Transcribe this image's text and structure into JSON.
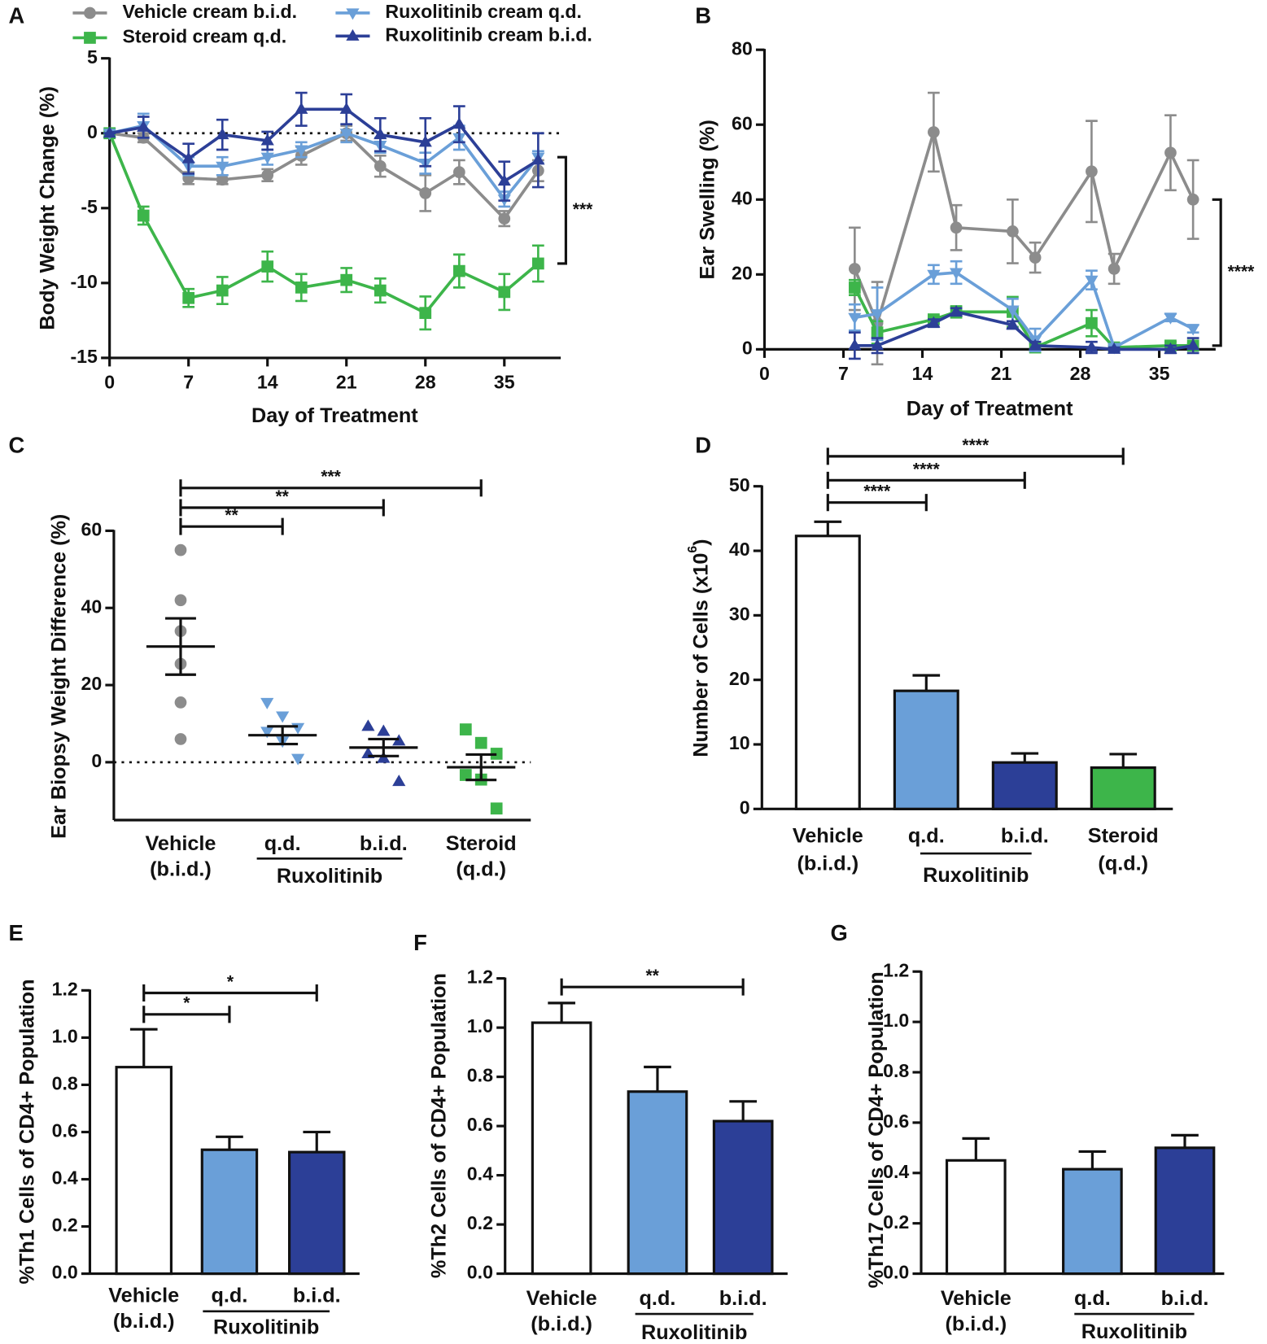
{
  "chart_data": [
    {
      "type": "line",
      "panel": "A",
      "xlabel": "Day of Treatment",
      "ylabel": "Body Weight Change (%)",
      "x": [
        0,
        3,
        7,
        10,
        14,
        17,
        21,
        24,
        28,
        31,
        35,
        38
      ],
      "xlim": [
        0,
        40
      ],
      "xticks": [
        0,
        7,
        14,
        21,
        28,
        35
      ],
      "ylim": [
        -15,
        5
      ],
      "yticks": [
        -15,
        -10,
        -5,
        0,
        5
      ],
      "zero_line": true,
      "legend": true,
      "annotation": "***",
      "series": [
        {
          "name": "Vehicle cream b.i.d.",
          "color": "#8c8c8c",
          "marker": "circle",
          "values": [
            0,
            -0.3,
            -3.0,
            -3.1,
            -2.8,
            -1.5,
            0,
            -2.2,
            -4.0,
            -2.6,
            -5.7,
            -2.5
          ],
          "errors": [
            0,
            0.3,
            0.4,
            0.3,
            0.4,
            0.6,
            0.5,
            0.7,
            1.2,
            0.8,
            0.5,
            0.7
          ]
        },
        {
          "name": "Steroid cream q.d.",
          "color": "#3db54a",
          "marker": "square",
          "values": [
            0,
            -5.5,
            -11,
            -10.5,
            -8.9,
            -10.3,
            -9.8,
            -10.5,
            -12,
            -9.2,
            -10.6,
            -8.7
          ],
          "errors": [
            0,
            0.6,
            0.6,
            0.9,
            1.0,
            0.9,
            0.8,
            0.8,
            1.1,
            1.1,
            1.2,
            1.2
          ]
        },
        {
          "name": "Ruxolitinib cream q.d.",
          "color": "#6a9fd8",
          "marker": "tri-down",
          "values": [
            0,
            0.5,
            -2.2,
            -2.2,
            -1.6,
            -1.1,
            0,
            -0.8,
            -2.0,
            -0.3,
            -4.4,
            -1.6
          ],
          "errors": [
            0,
            0.8,
            0.6,
            0.6,
            0.5,
            0.5,
            0.6,
            0.5,
            0.7,
            0.8,
            0.5,
            0.4
          ]
        },
        {
          "name": "Ruxolitinib cream b.i.d.",
          "color": "#2c3f97",
          "marker": "tri-up",
          "values": [
            0,
            0.4,
            -1.7,
            -0.1,
            -0.5,
            1.6,
            1.6,
            -0.1,
            -0.6,
            0.6,
            -3.2,
            -1.8
          ],
          "errors": [
            0,
            0.7,
            1.0,
            1.0,
            0.6,
            1.1,
            1.0,
            1.1,
            1.6,
            1.2,
            1.3,
            1.8
          ]
        }
      ]
    },
    {
      "type": "line",
      "panel": "B",
      "xlabel": "Day of Treatment",
      "ylabel": "Ear Swelling (%)",
      "x": [
        8,
        10,
        15,
        17,
        22,
        24,
        29,
        31,
        36,
        38
      ],
      "xlim": [
        0,
        40
      ],
      "xticks": [
        0,
        7,
        14,
        21,
        28,
        35
      ],
      "ylim": [
        0,
        80
      ],
      "yticks": [
        0,
        20,
        40,
        60,
        80
      ],
      "annotation": "****",
      "series": [
        {
          "color": "#8c8c8c",
          "marker": "circle",
          "values": [
            21.5,
            7,
            58,
            32.5,
            31.5,
            24.5,
            47.5,
            21.5,
            52.5,
            40
          ],
          "errors": [
            11,
            11,
            10.5,
            6,
            8.5,
            4,
            13.5,
            4,
            10,
            10.5
          ]
        },
        {
          "color": "#3db54a",
          "marker": "square",
          "values": [
            16.5,
            4.5,
            8,
            10,
            10,
            0.5,
            7,
            0.5,
            1,
            1
          ],
          "errors": [
            2,
            3,
            1,
            1.5,
            4,
            1,
            3.5,
            0.5,
            1,
            0.5
          ]
        },
        {
          "color": "#6a9fd8",
          "marker": "tri-down",
          "values": [
            8.5,
            9.5,
            20,
            20.5,
            10.5,
            2.5,
            18.5,
            0.5,
            8.5,
            5.5
          ],
          "errors": [
            3.5,
            7,
            2.5,
            3,
            3,
            3,
            2.5,
            0.5,
            1,
            1
          ]
        },
        {
          "color": "#2c3f97",
          "marker": "tri-up",
          "values": [
            1,
            1,
            7,
            10,
            6.5,
            1,
            0.5,
            0,
            0,
            1
          ],
          "errors": [
            3.5,
            2,
            1,
            1,
            1,
            1,
            1.5,
            0.5,
            1,
            2
          ]
        }
      ]
    },
    {
      "type": "dot",
      "panel": "C",
      "ylabel": "Ear Biopsy Weight Difference (%)",
      "categories": [
        [
          "Vehicle",
          "(b.i.d.)"
        ],
        [
          "q.d."
        ],
        [
          "b.i.d."
        ],
        [
          "Steroid",
          "(q.d.)"
        ]
      ],
      "group_label": "Ruxolitinib",
      "ylim": [
        -15,
        60
      ],
      "yticks": [
        0,
        20,
        40,
        60
      ],
      "zero_line": true,
      "groups": [
        {
          "color": "#8c8c8c",
          "marker": "circle",
          "points": [
            55,
            42,
            34,
            25.5,
            15.5,
            6
          ],
          "mean": 30,
          "sem": 7.3
        },
        {
          "color": "#6a9fd8",
          "marker": "tri-down",
          "points": [
            15.5,
            12,
            9,
            8,
            5.5,
            1
          ],
          "mean": 7,
          "sem": 2.3
        },
        {
          "color": "#2c3f97",
          "marker": "tri-up",
          "points": [
            9.3,
            8,
            5.5,
            2.2,
            1,
            -5
          ],
          "mean": 3.8,
          "sem": 2.2
        },
        {
          "color": "#3db54a",
          "marker": "square",
          "points": [
            8.5,
            5,
            2.2,
            -3.3,
            -4.5,
            -12
          ],
          "mean": -1.3,
          "sem": 3.3
        }
      ],
      "comparisons": [
        {
          "from": 0,
          "to": 1,
          "label": "**"
        },
        {
          "from": 0,
          "to": 2,
          "label": "**"
        },
        {
          "from": 0,
          "to": 3,
          "label": "***"
        }
      ]
    },
    {
      "type": "bar",
      "panel": "D",
      "ylabel": {
        "text": "Number of Cells (x10",
        "sup": "6",
        "end": ")"
      },
      "categories": [
        [
          "Vehicle",
          "(b.i.d.)"
        ],
        [
          "q.d."
        ],
        [
          "b.i.d."
        ],
        [
          "Steroid",
          "(q.d.)"
        ]
      ],
      "group_label": "Ruxolitinib",
      "ylim": [
        0,
        50
      ],
      "yticks": [
        0,
        10,
        20,
        30,
        40,
        50
      ],
      "values": [
        42.3,
        18.3,
        7.2,
        6.4
      ],
      "errors": [
        2.2,
        2.4,
        1.4,
        2.1
      ],
      "colors": [
        "#ffffff",
        "#6a9fd8",
        "#2c3f97",
        "#3db54a"
      ],
      "comparisons": [
        {
          "from": 0,
          "to": 1,
          "label": "****"
        },
        {
          "from": 0,
          "to": 2,
          "label": "****"
        },
        {
          "from": 0,
          "to": 3,
          "label": "****"
        }
      ]
    },
    {
      "type": "bar",
      "panel": "E",
      "ylabel": "%Th1 Cells of CD4+ Population",
      "categories": [
        [
          "Vehicle",
          "(b.i.d.)"
        ],
        [
          "q.d."
        ],
        [
          "b.i.d."
        ]
      ],
      "group_label": "Ruxolitinib",
      "ylim": [
        0,
        1.2
      ],
      "yticks": [
        {
          "value": 0,
          "label": "0.0"
        },
        0.2,
        0.4,
        0.6,
        0.8,
        {
          "value": 1,
          "label": "1.0"
        },
        1.2
      ],
      "values": [
        0.875,
        0.525,
        0.515
      ],
      "errors": [
        0.16,
        0.055,
        0.085
      ],
      "colors": [
        "#ffffff",
        "#6a9fd8",
        "#2c3f97"
      ],
      "comparisons": [
        {
          "from": 0,
          "to": 1,
          "label": "*"
        },
        {
          "from": 0,
          "to": 2,
          "label": "*"
        }
      ]
    },
    {
      "type": "bar",
      "panel": "F",
      "ylabel": "%Th2 Cells of CD4+ Population",
      "categories": [
        [
          "Vehicle",
          "(b.i.d.)"
        ],
        [
          "q.d."
        ],
        [
          "b.i.d."
        ]
      ],
      "group_label": "Ruxolitinib",
      "ylim": [
        0,
        1.2
      ],
      "yticks": [
        {
          "value": 0,
          "label": "0.0"
        },
        0.2,
        0.4,
        0.6,
        0.8,
        {
          "value": 1,
          "label": "1.0"
        },
        1.2
      ],
      "values": [
        1.02,
        0.74,
        0.62
      ],
      "errors": [
        0.08,
        0.1,
        0.08
      ],
      "colors": [
        "#ffffff",
        "#6a9fd8",
        "#2c3f97"
      ],
      "comparisons": [
        {
          "from": 0,
          "to": 2,
          "label": "**"
        }
      ]
    },
    {
      "type": "bar",
      "panel": "G",
      "ylabel": "%Th17 Cells of CD4+ Population",
      "categories": [
        [
          "Vehicle",
          "(b.i.d.)"
        ],
        [
          "q.d."
        ],
        [
          "b.i.d."
        ]
      ],
      "group_label": "Ruxolitinib",
      "ylim": [
        0,
        1.2
      ],
      "yticks": [
        {
          "value": 0,
          "label": "0.0"
        },
        0.2,
        0.4,
        0.6,
        0.8,
        {
          "value": 1,
          "label": "1.0"
        },
        1.2
      ],
      "values": [
        0.45,
        0.415,
        0.5
      ],
      "errors": [
        0.087,
        0.07,
        0.05
      ],
      "colors": [
        "#ffffff",
        "#6a9fd8",
        "#2c3f97"
      ]
    }
  ]
}
